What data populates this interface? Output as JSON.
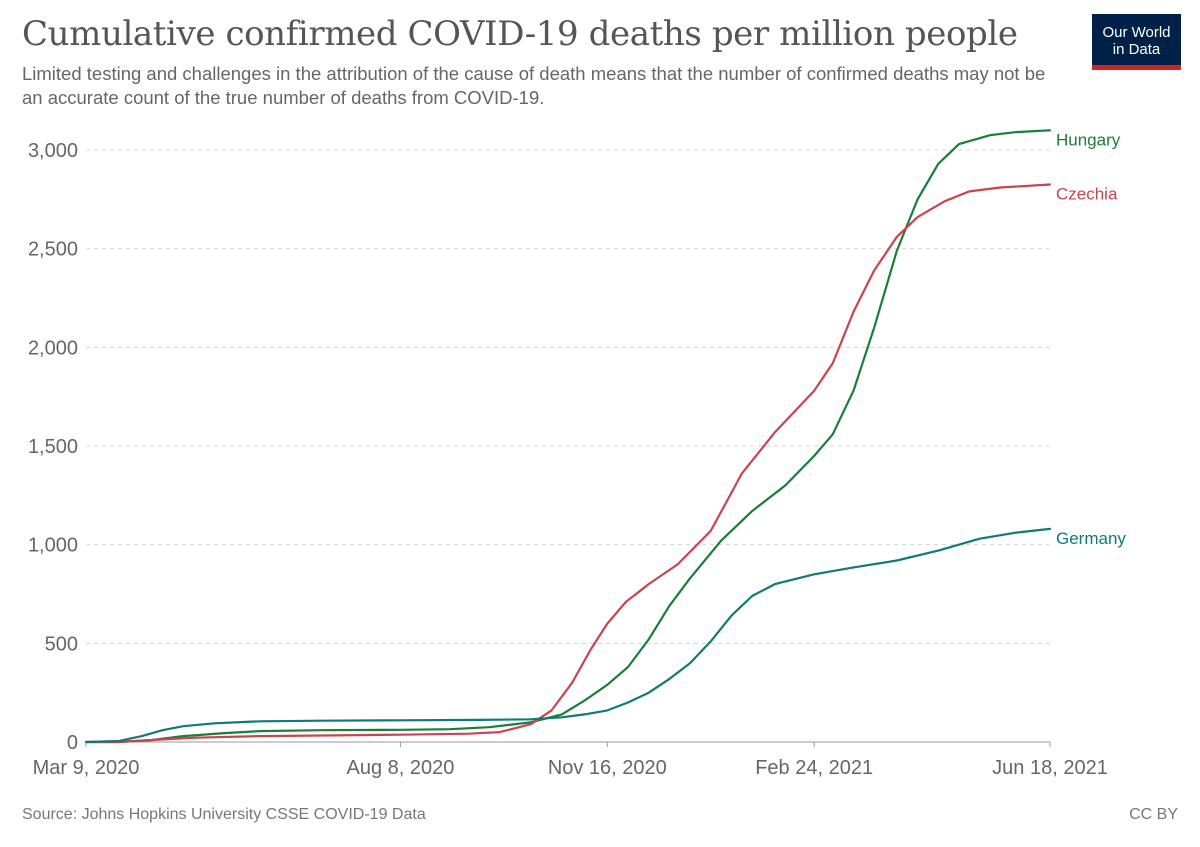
{
  "header": {
    "title": "Cumulative confirmed COVID-19 deaths per million people",
    "subtitle": "Limited testing and challenges in the attribution of the cause of death means that the number of confirmed deaths may not be an accurate count of the true number of deaths from COVID-19."
  },
  "logo": {
    "line1": "Our World",
    "line2": "in Data"
  },
  "footer": {
    "source": "Source: Johns Hopkins University CSSE COVID-19 Data",
    "license": "CC BY"
  },
  "chart_data": {
    "type": "line",
    "title": "Cumulative confirmed COVID-19 deaths per million people",
    "xlabel": "",
    "ylabel": "",
    "x_range": [
      "2020-03-09",
      "2021-06-18"
    ],
    "x_ticks": [
      {
        "date": "2020-03-09",
        "label": "Mar 9, 2020"
      },
      {
        "date": "2020-08-08",
        "label": "Aug 8, 2020"
      },
      {
        "date": "2020-11-16",
        "label": "Nov 16, 2020"
      },
      {
        "date": "2021-02-24",
        "label": "Feb 24, 2021"
      },
      {
        "date": "2021-06-18",
        "label": "Jun 18, 2021"
      }
    ],
    "ylim": [
      0,
      3000
    ],
    "y_ticks": [
      {
        "value": 0,
        "label": "0"
      },
      {
        "value": 500,
        "label": "500"
      },
      {
        "value": 1000,
        "label": "1,000"
      },
      {
        "value": 1500,
        "label": "1,500"
      },
      {
        "value": 2000,
        "label": "2,000"
      },
      {
        "value": 2500,
        "label": "2,500"
      },
      {
        "value": 3000,
        "label": "3,000"
      }
    ],
    "grid": true,
    "legend": "end-of-line labels",
    "series": [
      {
        "name": "Hungary",
        "color": "#1a7d3a",
        "points": [
          [
            "2020-03-09",
            0
          ],
          [
            "2020-03-25",
            0
          ],
          [
            "2020-04-10",
            10
          ],
          [
            "2020-04-25",
            30
          ],
          [
            "2020-05-15",
            45
          ],
          [
            "2020-06-01",
            55
          ],
          [
            "2020-07-01",
            60
          ],
          [
            "2020-08-08",
            62
          ],
          [
            "2020-09-01",
            65
          ],
          [
            "2020-09-20",
            75
          ],
          [
            "2020-10-10",
            100
          ],
          [
            "2020-10-25",
            140
          ],
          [
            "2020-11-05",
            210
          ],
          [
            "2020-11-16",
            290
          ],
          [
            "2020-11-26",
            380
          ],
          [
            "2020-12-06",
            520
          ],
          [
            "2020-12-16",
            690
          ],
          [
            "2020-12-26",
            830
          ],
          [
            "2021-01-10",
            1020
          ],
          [
            "2021-01-25",
            1170
          ],
          [
            "2021-02-10",
            1300
          ],
          [
            "2021-02-24",
            1450
          ],
          [
            "2021-03-05",
            1560
          ],
          [
            "2021-03-15",
            1780
          ],
          [
            "2021-03-25",
            2100
          ],
          [
            "2021-04-05",
            2490
          ],
          [
            "2021-04-15",
            2750
          ],
          [
            "2021-04-25",
            2930
          ],
          [
            "2021-05-05",
            3030
          ],
          [
            "2021-05-20",
            3075
          ],
          [
            "2021-06-01",
            3090
          ],
          [
            "2021-06-18",
            3100
          ]
        ]
      },
      {
        "name": "Czechia",
        "color": "#c9444f",
        "points": [
          [
            "2020-03-09",
            0
          ],
          [
            "2020-03-25",
            0
          ],
          [
            "2020-04-10",
            10
          ],
          [
            "2020-05-01",
            22
          ],
          [
            "2020-06-01",
            30
          ],
          [
            "2020-07-01",
            33
          ],
          [
            "2020-08-08",
            37
          ],
          [
            "2020-09-10",
            42
          ],
          [
            "2020-09-25",
            50
          ],
          [
            "2020-10-10",
            90
          ],
          [
            "2020-10-20",
            160
          ],
          [
            "2020-10-30",
            300
          ],
          [
            "2020-11-08",
            470
          ],
          [
            "2020-11-16",
            600
          ],
          [
            "2020-11-25",
            710
          ],
          [
            "2020-12-06",
            800
          ],
          [
            "2020-12-20",
            900
          ],
          [
            "2021-01-05",
            1070
          ],
          [
            "2021-01-20",
            1360
          ],
          [
            "2021-02-05",
            1570
          ],
          [
            "2021-02-24",
            1780
          ],
          [
            "2021-03-05",
            1920
          ],
          [
            "2021-03-15",
            2180
          ],
          [
            "2021-03-25",
            2390
          ],
          [
            "2021-04-05",
            2560
          ],
          [
            "2021-04-15",
            2660
          ],
          [
            "2021-04-28",
            2740
          ],
          [
            "2021-05-10",
            2790
          ],
          [
            "2021-05-25",
            2810
          ],
          [
            "2021-06-18",
            2825
          ]
        ]
      },
      {
        "name": "Germany",
        "color": "#107a74",
        "points": [
          [
            "2020-03-09",
            0
          ],
          [
            "2020-03-25",
            5
          ],
          [
            "2020-04-05",
            30
          ],
          [
            "2020-04-15",
            60
          ],
          [
            "2020-04-25",
            80
          ],
          [
            "2020-05-10",
            95
          ],
          [
            "2020-06-01",
            105
          ],
          [
            "2020-07-01",
            108
          ],
          [
            "2020-08-08",
            110
          ],
          [
            "2020-09-15",
            112
          ],
          [
            "2020-10-10",
            115
          ],
          [
            "2020-10-25",
            125
          ],
          [
            "2020-11-05",
            140
          ],
          [
            "2020-11-16",
            160
          ],
          [
            "2020-11-26",
            200
          ],
          [
            "2020-12-06",
            250
          ],
          [
            "2020-12-16",
            320
          ],
          [
            "2020-12-26",
            400
          ],
          [
            "2021-01-05",
            510
          ],
          [
            "2021-01-15",
            640
          ],
          [
            "2021-01-25",
            740
          ],
          [
            "2021-02-05",
            800
          ],
          [
            "2021-02-24",
            850
          ],
          [
            "2021-03-15",
            885
          ],
          [
            "2021-04-05",
            920
          ],
          [
            "2021-04-25",
            970
          ],
          [
            "2021-05-15",
            1030
          ],
          [
            "2021-06-01",
            1060
          ],
          [
            "2021-06-18",
            1080
          ]
        ]
      }
    ]
  }
}
